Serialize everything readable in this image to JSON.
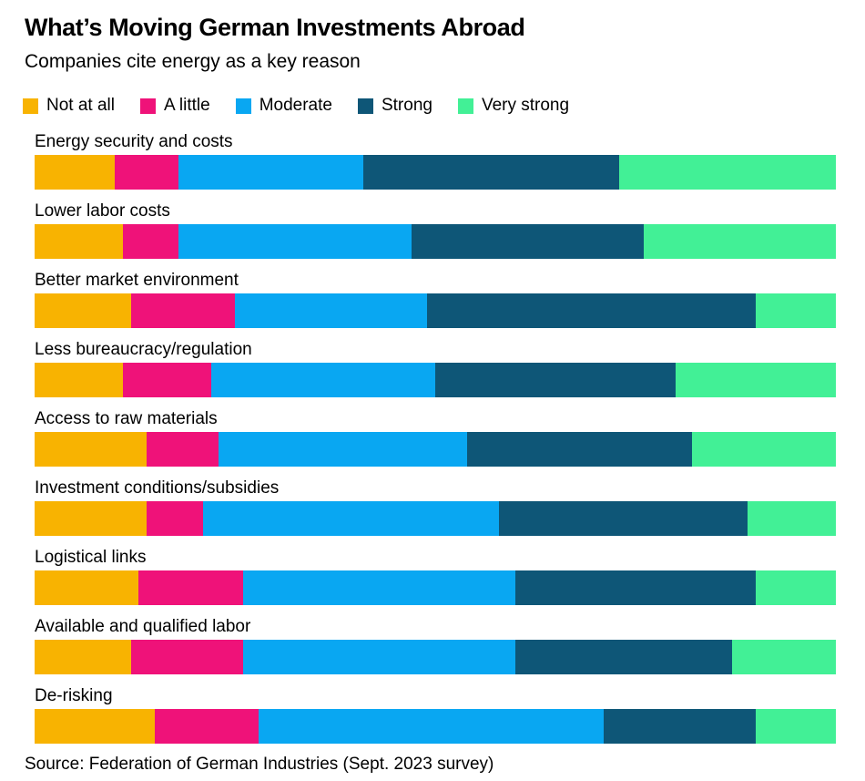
{
  "header": {
    "title": "What’s Moving German Investments Abroad",
    "subtitle": "Companies cite energy as a key reason"
  },
  "chart_data": {
    "type": "bar",
    "orientation": "horizontal-stacked",
    "unit": "percent",
    "title": "What’s Moving German Investments Abroad",
    "subtitle": "Companies cite energy as a key reason",
    "xlim": [
      0,
      100
    ],
    "grid": false,
    "legend_position": "top",
    "categories": [
      "Energy security and costs",
      "Lower labor costs",
      "Better market environment",
      "Less bureaucracy/regulation",
      "Access to raw materials",
      "Investment conditions/subsidies",
      "Logistical links",
      "Available and qualified labor",
      "De-risking"
    ],
    "series": [
      {
        "name": "Not at all",
        "color": "#F8B301",
        "values": [
          10,
          11,
          12,
          11,
          14,
          14,
          13,
          12,
          15
        ]
      },
      {
        "name": "A little",
        "color": "#EF1279",
        "values": [
          8,
          7,
          13,
          11,
          9,
          7,
          13,
          14,
          13
        ]
      },
      {
        "name": "Moderate",
        "color": "#09A7F2",
        "values": [
          23,
          29,
          24,
          28,
          31,
          37,
          34,
          34,
          43
        ]
      },
      {
        "name": "Strong",
        "color": "#0E5677",
        "values": [
          32,
          29,
          41,
          30,
          28,
          31,
          30,
          27,
          19
        ]
      },
      {
        "name": "Very strong",
        "color": "#42F096",
        "values": [
          27,
          24,
          10,
          20,
          18,
          11,
          10,
          13,
          10
        ]
      }
    ]
  },
  "footer": {
    "source": "Source: Federation of German Industries (Sept. 2023 survey)"
  }
}
